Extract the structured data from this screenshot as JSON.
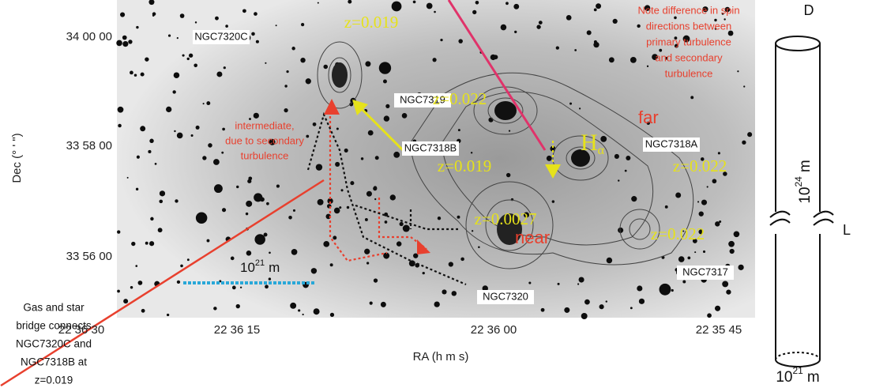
{
  "figure": {
    "axes": {
      "y_label": "Dec (° ' \")",
      "y_ticks": [
        "34 00 00",
        "33 58 00",
        "33 56 00"
      ],
      "x_label": "RA (h m s)",
      "x_ticks": [
        "22 36 30",
        "22 36 15",
        "22 36 00",
        "22 35 45"
      ]
    },
    "galaxies": [
      "NGC7320C",
      "NGC7319",
      "NGC7318B",
      "NGC7318A",
      "NGC7317",
      "NGC7320"
    ],
    "redshifts": [
      "z=0.019",
      "z=0.022",
      "z=0.019",
      "z=0.022",
      "z=0.0027",
      "z=0.022"
    ],
    "h_alpha": {
      "base": "H",
      "sub": "α"
    },
    "far": "far",
    "near": "near",
    "scale_bar": {
      "base": "10",
      "exp": "21",
      "unit": "m"
    },
    "intermediate_note": [
      "intermediate,",
      "due to secondary",
      "turbulence"
    ],
    "spin_note": [
      "Note difference in spin",
      "directions between",
      "primary turbulence",
      "and secondary",
      "turbulence"
    ],
    "bridge_note": [
      "Gas and star",
      "bridge connects",
      "NGC7320C and",
      "NGC7318B at",
      "z=0.019"
    ]
  },
  "cylinder": {
    "diameter_label": "D",
    "length_label": "L",
    "length": {
      "base": "10",
      "exp": "24",
      "unit": "m"
    },
    "diameter": {
      "base": "10",
      "exp": "21",
      "unit": "m"
    }
  }
}
